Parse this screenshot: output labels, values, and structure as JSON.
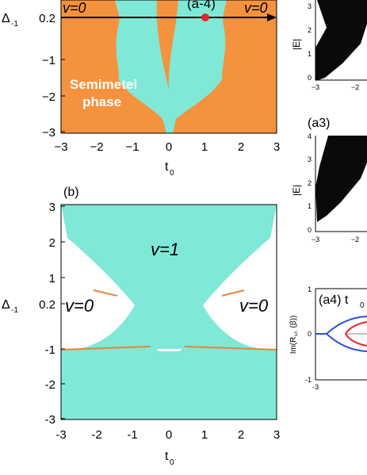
{
  "colors": {
    "teal": "#80E8D6",
    "orange": "#F5923E",
    "orange_line": "#E8833A",
    "red_dot": "#E0262A",
    "blue_curve": "#2E4FD8",
    "red_curve": "#E0262A",
    "black_band": "#0a0a0a"
  },
  "panel_a": {
    "ylabel": "Δ",
    "ylabel_sub": "-1",
    "xlabel": "t",
    "xlabel_sub": "0",
    "y_ticks": [
      "0.2",
      "−1",
      "−2",
      "−3"
    ],
    "x_ticks": [
      "−3",
      "−2",
      "−1",
      "0",
      "1",
      "2",
      "3"
    ],
    "label_v0_left": "v=0",
    "label_v0_right": "v=0",
    "point_label": "(a-4)",
    "semimetal_line1": "Semimetel",
    "semimetal_line2": "phase"
  },
  "panel_b": {
    "tag": "(b)",
    "ylabel": "Δ",
    "ylabel_sub": "-1",
    "xlabel": "t",
    "xlabel_sub": "0",
    "y_ticks": [
      "3",
      "2",
      "1",
      "0.2",
      "-1",
      "-2",
      "-3"
    ],
    "x_ticks": [
      "-3",
      "-2",
      "-1",
      "0",
      "1",
      "2",
      "3"
    ],
    "label_v1": "v=1",
    "label_v0_left": "v=0",
    "label_v0_right": "v=0"
  },
  "panel_a2": {
    "ylabel": "|E|",
    "y_ticks": [
      "3",
      "2",
      "1",
      "0"
    ],
    "x_ticks": [
      "−3",
      "−2"
    ]
  },
  "panel_a3": {
    "tag": "(a3)",
    "ylabel": "|E|",
    "y_ticks": [
      "4",
      "3",
      "2",
      "1",
      "0"
    ],
    "x_ticks": [
      "−3",
      "−2"
    ]
  },
  "panel_a4": {
    "tag": "(a4) t",
    "tag_sub": "0",
    "ylabel": "Im(R",
    "ylabel_sub": "+/-",
    "ylabel_tail": " (β))",
    "y_ticks": [
      "1",
      "0",
      "-1"
    ],
    "x_ticks": [
      "-3"
    ]
  }
}
